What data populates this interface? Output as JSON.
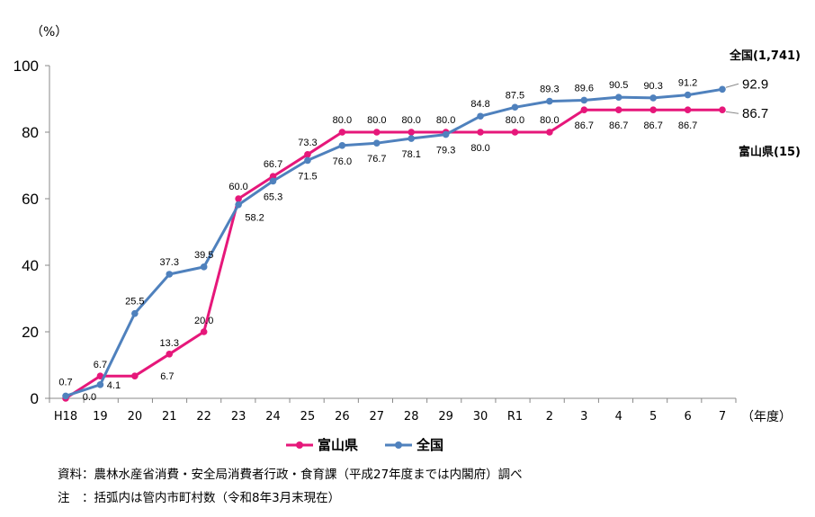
{
  "chart_data": {
    "type": "line",
    "y_unit_label": "（%）",
    "x_unit_label": "（年度）",
    "ylim": [
      0,
      100
    ],
    "yticks": [
      0,
      20,
      40,
      60,
      80,
      100
    ],
    "categories": [
      "H18",
      "19",
      "20",
      "21",
      "22",
      "23",
      "24",
      "25",
      "26",
      "27",
      "28",
      "29",
      "30",
      "R1",
      "2",
      "3",
      "4",
      "5",
      "6",
      "7"
    ],
    "series": [
      {
        "name": "富山県",
        "color": "#E6177A",
        "values": [
          0.0,
          6.7,
          6.7,
          13.3,
          20.0,
          60.0,
          66.7,
          73.3,
          80.0,
          80.0,
          80.0,
          80.0,
          80.0,
          80.0,
          80.0,
          86.7,
          86.7,
          86.7,
          86.7,
          86.7
        ],
        "labels": [
          "0.0",
          "6.7",
          "6.7",
          "13.3",
          "20.0",
          "60.0",
          "66.7",
          "73.3",
          "80.0",
          "80.0",
          "80.0",
          "80.0",
          "80.0",
          "80.0",
          "80.0",
          "86.7",
          "86.7",
          "86.7",
          "86.7",
          "86.7"
        ],
        "end_label": "富山県(15)"
      },
      {
        "name": "全国",
        "color": "#4F81BD",
        "values": [
          0.7,
          4.1,
          25.5,
          37.3,
          39.5,
          58.2,
          65.3,
          71.5,
          76.0,
          76.7,
          78.1,
          79.3,
          84.8,
          87.5,
          89.3,
          89.6,
          90.5,
          90.3,
          91.2,
          92.9
        ],
        "labels": [
          "0.7",
          "4.1",
          "25.5",
          "37.3",
          "39.5",
          "58.2",
          "65.3",
          "71.5",
          "76.0",
          "76.7",
          "78.1",
          "79.3",
          "84.8",
          "87.5",
          "89.3",
          "89.6",
          "90.5",
          "90.3",
          "91.2",
          "92.9"
        ],
        "end_label": "全国(1,741)"
      }
    ],
    "legend_position": "bottom",
    "grid": false
  },
  "notes": [
    "資料：農林水産省消費・安全局消費者行政・食育課（平成27年度までは内閣府）調べ",
    "注　：括弧内は管内市町村数（令和8年3月末現在）"
  ]
}
